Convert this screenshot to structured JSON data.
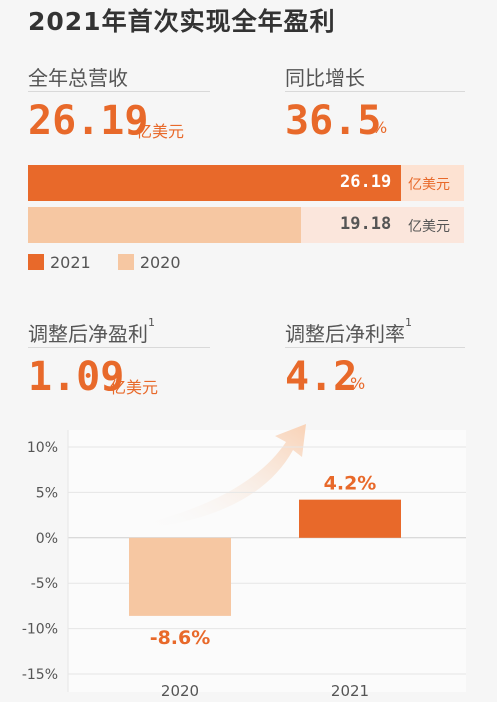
{
  "title": "2021年首次实现全年盈利",
  "kpis": {
    "revenue": {
      "label": "全年总营收",
      "value": "26.19",
      "unit": "亿美元"
    },
    "growth": {
      "label": "同比增长",
      "value": "36.5",
      "unit": "%"
    },
    "adj_profit": {
      "label": "调整后净盈利",
      "sup": "1",
      "value": "1.09",
      "unit": "亿美元"
    },
    "adj_margin": {
      "label": "调整后净利率",
      "sup": "1",
      "value": "4.2",
      "unit": "%"
    }
  },
  "colors": {
    "dark": "#e8692a",
    "light": "#f6c7a2",
    "track_dark": "#fde2d2",
    "track_light": "#fbe6dc"
  },
  "chart_data": [
    {
      "type": "bar",
      "orientation": "horizontal",
      "categories": [
        "2021",
        "2020"
      ],
      "values": [
        26.19,
        19.18
      ],
      "value_labels": [
        "26.19",
        "19.18"
      ],
      "unit": "亿美元",
      "legend": [
        "2021",
        "2020"
      ]
    },
    {
      "type": "bar",
      "categories": [
        "2020",
        "2021"
      ],
      "values": [
        -8.6,
        4.2
      ],
      "value_labels": [
        "-8.6%",
        "4.2%"
      ],
      "yticks": [
        "10%",
        "5%",
        "0%",
        "-5%",
        "-10%",
        "-15%"
      ],
      "ylim": [
        -15,
        10
      ]
    }
  ]
}
